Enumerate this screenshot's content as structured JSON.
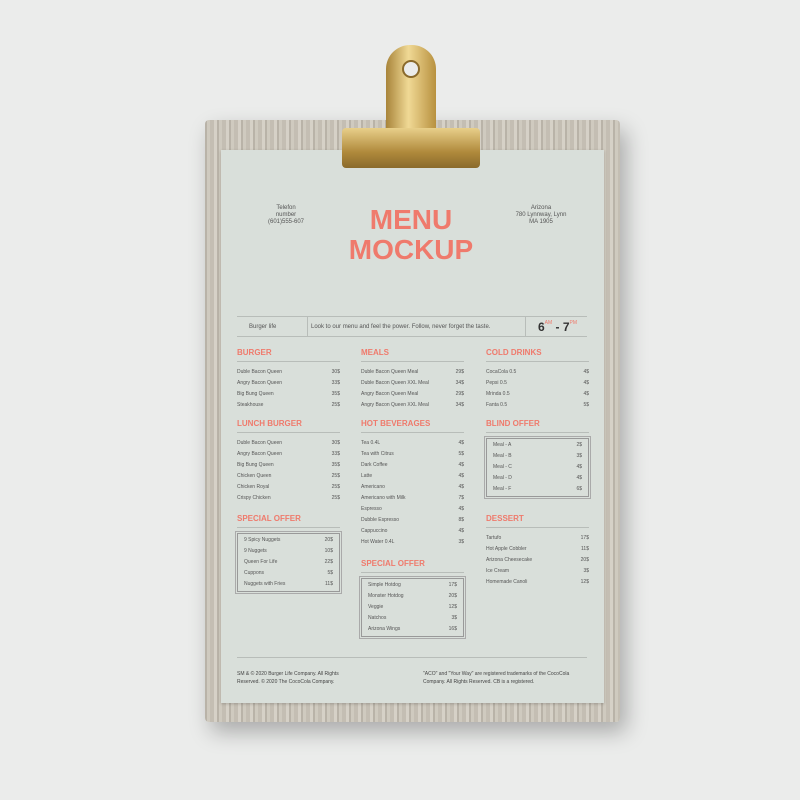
{
  "header": {
    "phone_label": "Telefon number",
    "phone": "(601)555-607",
    "title_line1": "MENU",
    "title_line2": "MOCKUP",
    "address_line1": "Arizona",
    "address_line2": "780 Lynnway, Lynn",
    "address_line3": "MA 1905"
  },
  "banner": {
    "brand": "Burger life",
    "tagline": "Look to our menu and feel the power. Follow, never forget the taste.",
    "open_hour": "6",
    "open_suffix": "AM",
    "separator": "-",
    "close_hour": "7",
    "close_suffix": "PM"
  },
  "sections": [
    {
      "title": "BURGER",
      "items": [
        [
          "Duble Bacon Queen",
          "30$"
        ],
        [
          "Angry Bacon Queen",
          "33$"
        ],
        [
          "Big Bung Queen",
          "35$"
        ],
        [
          "Steakhouse",
          "25$"
        ]
      ]
    },
    {
      "title": "LUNCH BURGER",
      "items": [
        [
          "Duble Bacon Queen",
          "30$"
        ],
        [
          "Angry Bacon Queen",
          "33$"
        ],
        [
          "Big Bung Queen",
          "35$"
        ],
        [
          "Chicken Queen",
          "25$"
        ],
        [
          "Chicken Royal",
          "25$"
        ],
        [
          "Crispy Chicken",
          "25$"
        ]
      ]
    },
    {
      "title": "SPECIAL OFFER",
      "boxed": true,
      "items": [
        [
          "9 Spicy Nuggets",
          "20$"
        ],
        [
          "9 Nuggets",
          "10$"
        ],
        [
          "Queen For Life",
          "22$"
        ],
        [
          "Cuppons",
          "5$"
        ],
        [
          "Nuggets with Fries",
          "11$"
        ]
      ]
    },
    {
      "title": "MEALS",
      "items": [
        [
          "Duble Bacon Queen Meal",
          "29$"
        ],
        [
          "Duble Bacon Queen XXL Meal",
          "34$"
        ],
        [
          "Angry Bacon Queen Meal",
          "29$"
        ],
        [
          "Angry Bacon Queen XXL Meal",
          "34$"
        ]
      ]
    },
    {
      "title": "HOT BEVERAGES",
      "items": [
        [
          "Tea 0.4L",
          "4$"
        ],
        [
          "Tea with Citrus",
          "5$"
        ],
        [
          "Dark Coffee",
          "4$"
        ],
        [
          "Latte",
          "4$"
        ],
        [
          "Americano",
          "4$"
        ],
        [
          "Americano with Milk",
          "7$"
        ],
        [
          "Espresso",
          "4$"
        ],
        [
          "Dubble Espresso",
          "8$"
        ],
        [
          "Cappuccino",
          "4$"
        ],
        [
          "Hot Water 0.4L",
          "3$"
        ]
      ]
    },
    {
      "title": "SPECIAL OFFER",
      "boxed": true,
      "items": [
        [
          "Simple Hotdog",
          "17$"
        ],
        [
          "Monster Hotdog",
          "20$"
        ],
        [
          "Veggie",
          "12$"
        ],
        [
          "Natchos",
          "3$"
        ],
        [
          "Arizona Wings",
          "16$"
        ]
      ]
    },
    {
      "title": "COLD DRINKS",
      "items": [
        [
          "CocaCola 0.5",
          "4$"
        ],
        [
          "Pepsi 0.5",
          "4$"
        ],
        [
          "Mrinda 0.5",
          "4$"
        ],
        [
          "Fanta 0.5",
          "5$"
        ]
      ]
    },
    {
      "title": "BLIND OFFER",
      "boxed": true,
      "items": [
        [
          "Meal - A",
          "2$"
        ],
        [
          "Meal - B",
          "3$"
        ],
        [
          "Meal - C",
          "4$"
        ],
        [
          "Meal - D",
          "4$"
        ],
        [
          "Meal - F",
          "6$"
        ]
      ]
    },
    {
      "title": "DESSERT",
      "items": [
        [
          "Tartufo",
          "17$"
        ],
        [
          "Hot Apple Cobbler",
          "11$"
        ],
        [
          "Arizona Cheesecake",
          "20$"
        ],
        [
          "Ice Cream",
          "3$"
        ],
        [
          "Homemade Canoli",
          "12$"
        ]
      ]
    }
  ],
  "footer": {
    "left": "SM & © 2020 Burger Life Company. All Rights Reserved. © 2020 The CocoCola Company.",
    "right": "\"ACO\" and \"Your Way\" are registered trademarks of the CocoCola Company. All Rights Reserved. CB is a registered."
  },
  "colors": {
    "accent": "#ef7a6c",
    "paper": "#d9dfda"
  }
}
